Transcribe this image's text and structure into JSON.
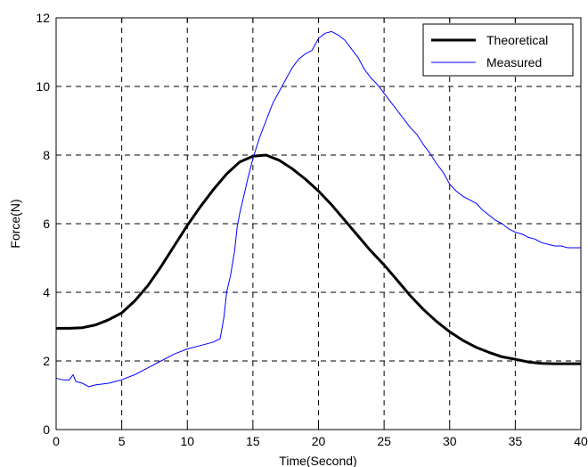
{
  "chart_data": {
    "type": "line",
    "title": "",
    "xlabel": "Time(Second)",
    "ylabel": "Force(N)",
    "xlim": [
      0,
      40
    ],
    "ylim": [
      0,
      12
    ],
    "xticks": [
      0,
      5,
      10,
      15,
      20,
      25,
      30,
      35,
      40
    ],
    "yticks": [
      0,
      2,
      4,
      6,
      8,
      10,
      12
    ],
    "grid": true,
    "legend_position": "top-right",
    "series": [
      {
        "name": "Theoretical",
        "color": "#000000",
        "x": [
          0,
          1,
          2,
          3,
          4,
          5,
          6,
          7,
          8,
          9,
          10,
          11,
          12,
          13,
          14,
          15,
          16,
          17,
          18,
          19,
          20,
          21,
          22,
          23,
          24,
          25,
          26,
          27,
          28,
          29,
          30,
          31,
          32,
          33,
          34,
          35,
          36,
          37,
          38,
          39,
          40
        ],
        "y": [
          2.95,
          2.95,
          2.97,
          3.05,
          3.2,
          3.4,
          3.75,
          4.2,
          4.75,
          5.35,
          5.95,
          6.5,
          7.0,
          7.45,
          7.8,
          7.97,
          8.0,
          7.85,
          7.6,
          7.3,
          6.95,
          6.55,
          6.1,
          5.65,
          5.2,
          4.8,
          4.35,
          3.9,
          3.5,
          3.15,
          2.85,
          2.6,
          2.4,
          2.25,
          2.12,
          2.05,
          1.97,
          1.93,
          1.92,
          1.92,
          1.92
        ]
      },
      {
        "name": "Measured",
        "color": "#0000ff",
        "x": [
          0,
          0.5,
          1,
          1.3,
          1.5,
          2,
          2.5,
          3,
          4,
          5,
          6,
          7,
          8,
          9,
          10,
          11,
          12,
          12.5,
          12.8,
          13.0,
          13.3,
          13.6,
          13.8,
          14.0,
          14.3,
          14.6,
          15.0,
          15.5,
          16,
          16.5,
          17,
          17.5,
          18,
          18.5,
          19,
          19.5,
          20,
          20.5,
          21,
          21.5,
          22,
          22.5,
          23,
          23.5,
          24,
          24.5,
          25,
          25.5,
          26,
          26.5,
          27,
          27.5,
          28,
          28.5,
          29,
          29.5,
          30,
          30.5,
          31,
          31.5,
          32,
          32.5,
          33,
          33.5,
          34,
          34.5,
          35,
          35.5,
          36,
          36.5,
          37,
          37.5,
          38,
          38.5,
          39,
          39.5,
          40
        ],
        "y": [
          1.5,
          1.45,
          1.45,
          1.6,
          1.4,
          1.35,
          1.25,
          1.3,
          1.35,
          1.45,
          1.6,
          1.8,
          2.0,
          2.2,
          2.35,
          2.45,
          2.55,
          2.65,
          3.3,
          4.0,
          4.5,
          5.2,
          5.9,
          6.3,
          6.8,
          7.3,
          7.9,
          8.5,
          9.0,
          9.5,
          9.85,
          10.2,
          10.55,
          10.8,
          10.95,
          11.05,
          11.4,
          11.55,
          11.6,
          11.5,
          11.35,
          11.1,
          10.85,
          10.5,
          10.25,
          10.05,
          9.8,
          9.55,
          9.3,
          9.05,
          8.8,
          8.6,
          8.3,
          8.05,
          7.75,
          7.5,
          7.15,
          6.95,
          6.8,
          6.7,
          6.6,
          6.4,
          6.25,
          6.1,
          6.0,
          5.85,
          5.75,
          5.7,
          5.6,
          5.55,
          5.45,
          5.4,
          5.35,
          5.35,
          5.3,
          5.3,
          5.3
        ]
      }
    ]
  }
}
